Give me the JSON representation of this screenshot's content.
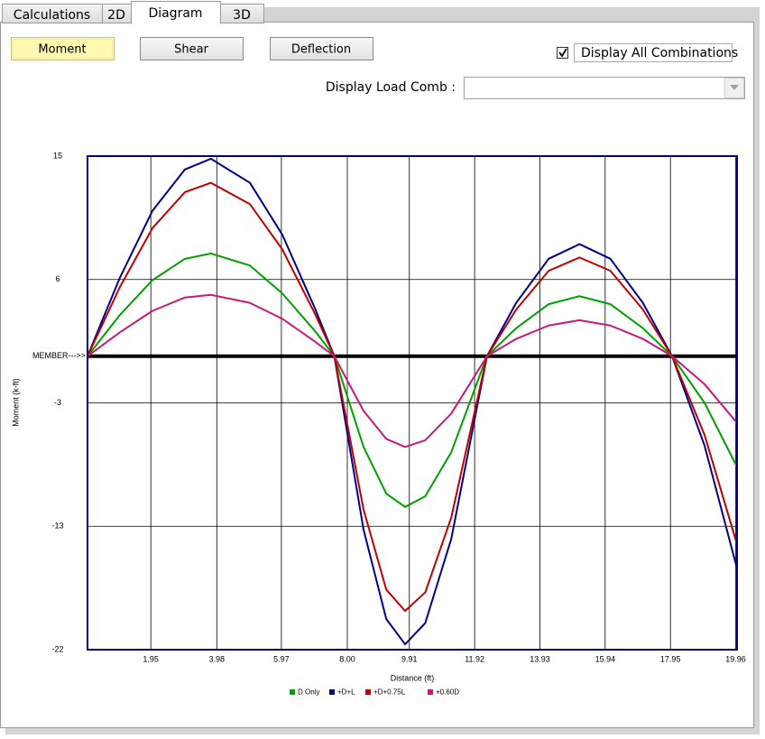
{
  "tabs": [
    {
      "label": "Calculations",
      "active": false
    },
    {
      "label": "2D",
      "active": false
    },
    {
      "label": "Diagram",
      "active": true
    },
    {
      "label": "3D",
      "active": false
    }
  ],
  "buttons": [
    {
      "label": "Moment",
      "active": true
    },
    {
      "label": "Shear",
      "active": false
    },
    {
      "label": "Deflection",
      "active": false
    }
  ],
  "checkbox": {
    "label": "Display All Combinations",
    "checked": true
  },
  "load_comb": {
    "label": "Display Load Comb :"
  },
  "chart_data": {
    "type": "line",
    "x_label": "Distance (ft)",
    "y_label": "Moment (k-ft)",
    "member_label": "MEMBER--->>",
    "x": [
      0,
      1,
      2,
      3,
      3.8,
      5,
      6,
      7,
      7.6,
      8.5,
      9.2,
      9.78,
      10.4,
      11.2,
      12.3,
      13.2,
      14.2,
      15.15,
      16.1,
      17.1,
      18,
      19,
      20
    ],
    "series": [
      {
        "name": "D Only",
        "color": "#00a000",
        "values": [
          0,
          3.1,
          5.7,
          7.3,
          7.7,
          6.8,
          4.7,
          1.9,
          0,
          -6.8,
          -10.3,
          -11.3,
          -10.5,
          -7.2,
          0,
          2.1,
          3.9,
          4.5,
          3.9,
          2.1,
          0,
          -3.5,
          -8.3
        ]
      },
      {
        "name": "+D+L",
        "color": "#00008b",
        "values": [
          0,
          5.9,
          10.9,
          14.0,
          14.8,
          13.0,
          9.1,
          3.6,
          0,
          -13.0,
          -19.7,
          -21.6,
          -20.0,
          -13.7,
          0,
          4.0,
          7.3,
          8.4,
          7.3,
          4.0,
          0,
          -6.7,
          -15.9
        ]
      },
      {
        "name": "+D+0.75L",
        "color": "#c00000",
        "values": [
          0,
          5.2,
          9.6,
          12.3,
          13.0,
          11.4,
          8.0,
          3.2,
          0,
          -11.5,
          -17.5,
          -19.1,
          -17.7,
          -12.1,
          0,
          3.5,
          6.4,
          7.4,
          6.4,
          3.5,
          0,
          -5.9,
          -14.1
        ]
      },
      {
        "name": "+0.60D",
        "color": "#c8187a",
        "values": [
          0,
          1.8,
          3.4,
          4.4,
          4.6,
          4.0,
          2.8,
          1.1,
          0,
          -4.1,
          -6.2,
          -6.8,
          -6.3,
          -4.3,
          0,
          1.3,
          2.3,
          2.7,
          2.3,
          1.3,
          0,
          -2.1,
          -5.0
        ]
      }
    ],
    "xlim": [
      0,
      20
    ],
    "ylim": [
      -22,
      15
    ],
    "xticks": [
      1.95,
      3.98,
      5.97,
      {
        "value": 8,
        "label": "8.00"
      },
      9.91,
      11.92,
      13.93,
      15.94,
      17.95,
      19.96
    ],
    "yticks": [
      15,
      {
        "value": 5.75,
        "label": "6"
      },
      {
        "value": -3.5,
        "label": "-3"
      },
      {
        "value": -12.75,
        "label": "-13"
      },
      -22
    ],
    "grid": true,
    "legend": "bottom"
  }
}
